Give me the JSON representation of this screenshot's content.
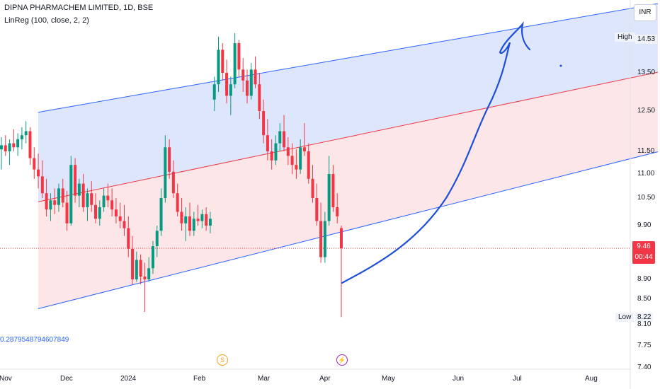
{
  "header": {
    "title": "DIPNA PHARMACHEM LIMITED, 1D, BSE",
    "indicator": "LinReg (100, close, 2, 2)"
  },
  "regression_value": "0.2879548794607849",
  "currency": "INR",
  "high_label": "High",
  "high_value": "14.53",
  "low_label": "Low",
  "low_value": "8.22",
  "last_price": "9.46",
  "countdown": "00:44",
  "events": {
    "dividend": "S",
    "earnings": "⚡"
  },
  "colors": {
    "up": "#089981",
    "down": "#f23645",
    "channel_line": "#2962ff",
    "center_line": "#f23645",
    "upper_fill": "#d9e3fb",
    "lower_fill": "#fde3e4",
    "drawing": "#1e4fd8"
  },
  "chart_data": {
    "type": "candlestick",
    "title": "DIPNA PHARMACHEM LIMITED, 1D, BSE",
    "y_ticks": [
      "14.53",
      "13.50",
      "12.50",
      "11.50",
      "11.00",
      "10.50",
      "9.90",
      "9.46",
      "8.90",
      "8.50",
      "8.22",
      "8.10",
      "7.75",
      "7.40"
    ],
    "x_ticks": [
      "Nov",
      "Dec",
      "2024",
      "Feb",
      "Mar",
      "Apr",
      "May",
      "Jun",
      "Jul",
      "Aug"
    ],
    "ylim": [
      7.4,
      14.9
    ],
    "linreg": {
      "start_date": "2023-11-17",
      "end_date": "2024-04-05",
      "upper": [
        12.47,
        13.95
      ],
      "center": [
        10.42,
        11.9
      ],
      "lower": [
        8.35,
        9.85
      ],
      "extended_to": "2024-08-31"
    },
    "candles": [
      [
        11.55,
        11.85,
        11.1,
        11.65
      ],
      [
        11.65,
        11.9,
        11.4,
        11.5
      ],
      [
        11.5,
        11.8,
        11.2,
        11.7
      ],
      [
        11.7,
        12.05,
        11.5,
        11.6
      ],
      [
        11.6,
        11.95,
        11.4,
        11.8
      ],
      [
        11.8,
        12.1,
        11.55,
        11.9
      ],
      [
        11.9,
        12.25,
        11.7,
        12.0
      ],
      [
        12.0,
        12.1,
        11.2,
        11.35
      ],
      [
        11.35,
        11.6,
        10.9,
        11.1
      ],
      [
        11.1,
        11.45,
        10.7,
        10.95
      ],
      [
        10.95,
        11.3,
        10.5,
        10.6
      ],
      [
        10.6,
        10.9,
        10.1,
        10.25
      ],
      [
        10.25,
        10.6,
        10.0,
        10.45
      ],
      [
        10.45,
        10.7,
        10.15,
        10.35
      ],
      [
        10.35,
        10.8,
        10.2,
        10.7
      ],
      [
        10.7,
        10.9,
        10.3,
        10.4
      ],
      [
        10.4,
        10.65,
        9.8,
        9.95
      ],
      [
        9.95,
        11.4,
        9.9,
        11.2
      ],
      [
        11.2,
        11.35,
        10.4,
        10.55
      ],
      [
        10.55,
        10.9,
        10.3,
        10.8
      ],
      [
        10.8,
        11.0,
        10.2,
        10.3
      ],
      [
        10.3,
        10.7,
        10.0,
        10.6
      ],
      [
        10.6,
        10.85,
        10.2,
        10.35
      ],
      [
        10.35,
        10.6,
        9.95,
        10.05
      ],
      [
        10.05,
        10.45,
        9.9,
        10.3
      ],
      [
        10.3,
        10.7,
        10.2,
        10.55
      ],
      [
        10.55,
        10.8,
        10.3,
        10.45
      ],
      [
        10.45,
        10.7,
        10.1,
        10.25
      ],
      [
        10.25,
        10.5,
        9.95,
        10.1
      ],
      [
        10.1,
        10.4,
        9.85,
        10.0
      ],
      [
        10.0,
        10.35,
        9.7,
        9.85
      ],
      [
        9.85,
        10.1,
        9.3,
        9.45
      ],
      [
        9.45,
        9.7,
        8.8,
        8.9
      ],
      [
        8.9,
        9.4,
        8.85,
        9.25
      ],
      [
        9.25,
        9.35,
        8.8,
        8.95
      ],
      [
        8.95,
        9.2,
        8.3,
        8.9
      ],
      [
        8.9,
        9.3,
        8.85,
        9.1
      ],
      [
        9.1,
        9.6,
        9.0,
        9.5
      ],
      [
        9.5,
        9.9,
        9.3,
        9.8
      ],
      [
        9.8,
        10.7,
        9.7,
        10.5
      ],
      [
        10.5,
        11.9,
        10.4,
        11.6
      ],
      [
        11.6,
        11.8,
        10.9,
        11.05
      ],
      [
        11.05,
        11.3,
        10.5,
        10.6
      ],
      [
        10.6,
        10.8,
        10.1,
        10.2
      ],
      [
        10.2,
        10.5,
        9.8,
        9.95
      ],
      [
        9.95,
        10.3,
        9.6,
        10.1
      ],
      [
        10.1,
        10.4,
        9.7,
        9.8
      ],
      [
        9.8,
        10.2,
        9.7,
        10.05
      ],
      [
        10.05,
        10.35,
        9.9,
        10.0
      ],
      [
        10.0,
        10.25,
        9.85,
        10.15
      ],
      [
        10.15,
        10.3,
        9.8,
        9.9
      ],
      [
        9.9,
        10.2,
        9.75,
        10.05
      ],
      [
        12.8,
        13.4,
        12.5,
        13.2
      ],
      [
        13.2,
        14.6,
        13.0,
        14.2
      ],
      [
        14.2,
        14.4,
        13.3,
        13.5
      ],
      [
        13.5,
        13.9,
        12.7,
        12.9
      ],
      [
        12.9,
        13.4,
        12.4,
        13.2
      ],
      [
        13.2,
        14.7,
        13.1,
        14.4
      ],
      [
        14.4,
        14.5,
        13.4,
        13.6
      ],
      [
        13.6,
        13.95,
        13.0,
        13.3
      ],
      [
        13.3,
        13.6,
        12.7,
        12.9
      ],
      [
        12.9,
        13.8,
        12.8,
        13.6
      ],
      [
        13.6,
        14.0,
        13.1,
        13.2
      ],
      [
        13.2,
        13.5,
        12.3,
        12.5
      ],
      [
        12.5,
        12.8,
        11.7,
        11.9
      ],
      [
        11.9,
        12.3,
        11.3,
        11.5
      ],
      [
        11.5,
        11.8,
        11.1,
        11.3
      ],
      [
        11.3,
        11.9,
        11.2,
        11.7
      ],
      [
        11.7,
        12.2,
        11.5,
        12.0
      ],
      [
        12.0,
        12.4,
        11.5,
        11.6
      ],
      [
        11.6,
        11.85,
        11.2,
        11.4
      ],
      [
        11.4,
        11.7,
        11.0,
        11.2
      ],
      [
        11.2,
        11.55,
        10.9,
        11.1
      ],
      [
        11.1,
        11.8,
        11.0,
        11.6
      ],
      [
        11.6,
        12.2,
        11.4,
        11.5
      ],
      [
        11.5,
        11.7,
        10.8,
        10.9
      ],
      [
        10.9,
        11.2,
        10.4,
        10.5
      ],
      [
        10.5,
        10.8,
        9.9,
        10.0
      ],
      [
        10.0,
        10.4,
        9.2,
        9.3
      ],
      [
        9.3,
        10.2,
        9.2,
        10.0
      ],
      [
        10.0,
        11.4,
        9.9,
        11.0
      ],
      [
        11.0,
        11.2,
        10.2,
        10.3
      ],
      [
        10.3,
        10.6,
        9.95,
        10.1
      ],
      [
        9.85,
        9.9,
        8.22,
        9.46
      ]
    ]
  }
}
